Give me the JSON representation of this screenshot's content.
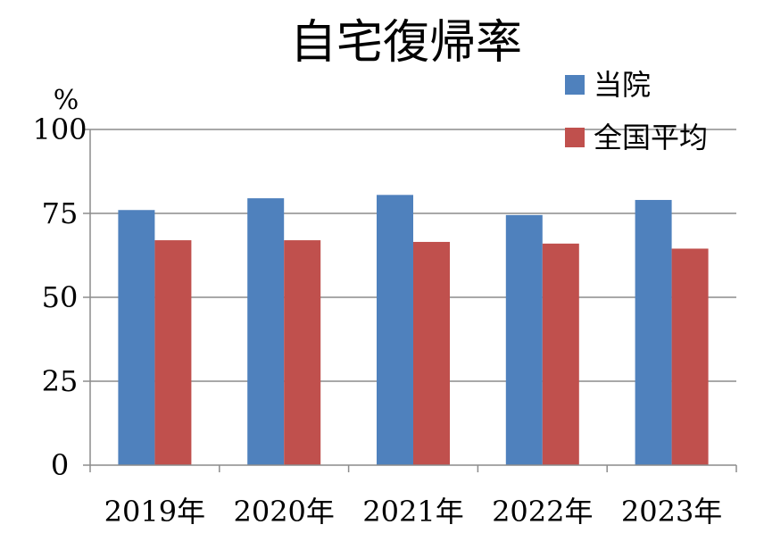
{
  "chart_data": {
    "type": "bar",
    "title": "自宅復帰率",
    "ylabel": "%",
    "xlabel": "",
    "categories": [
      "2019年",
      "2020年",
      "2021年",
      "2022年",
      "2023年"
    ],
    "series": [
      {
        "name": "当院",
        "color": "#4f81bd",
        "values": [
          76,
          79.5,
          80.5,
          74.5,
          79
        ]
      },
      {
        "name": "全国平均",
        "color": "#c0504d",
        "values": [
          67,
          67,
          66.5,
          66,
          64.5
        ]
      }
    ],
    "ylim": [
      0,
      100
    ],
    "yticks": [
      "0",
      "25",
      "50",
      "75",
      "100"
    ],
    "grid": true,
    "legend": "top-right"
  }
}
